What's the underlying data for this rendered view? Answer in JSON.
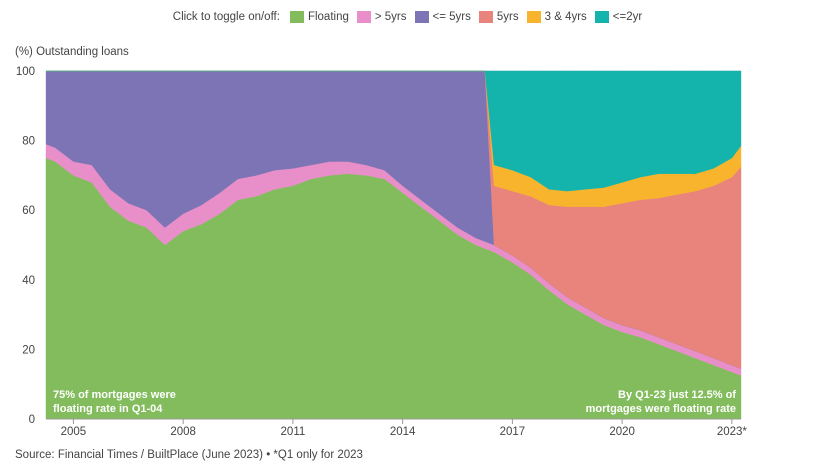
{
  "legend": {
    "prompt": "Click to toggle on/off:",
    "items": [
      {
        "label": "Floating",
        "color": "#82bc5c"
      },
      {
        "label": "> 5yrs",
        "color": "#e88ec8"
      },
      {
        "label": "<= 5yrs",
        "color": "#7c74b4"
      },
      {
        "label": "5yrs",
        "color": "#e8847c"
      },
      {
        "label": "3 & 4yrs",
        "color": "#f8b42c"
      },
      {
        "label": "<=2yr",
        "color": "#14b4ac"
      }
    ]
  },
  "ylabel": "(%) Outstanding loans",
  "source": "Source: Financial Times / BuiltPlace (June 2023) • *Q1 only for 2023",
  "annotations": {
    "left_line1": "75% of mortgages were",
    "left_line2": "floating rate in Q1-04",
    "right_line1": "By Q1-23 just 12.5% of",
    "right_line2": "mortgages were floating rate"
  },
  "chart_data": {
    "type": "area",
    "stacked": true,
    "ylabel": "(%) Outstanding loans",
    "ylim": [
      0,
      100
    ],
    "yticks": [
      0,
      20,
      40,
      60,
      80,
      100
    ],
    "xlim": [
      2004.25,
      2023.25
    ],
    "xticks": [
      2005,
      2008,
      2011,
      2014,
      2017,
      2020,
      2023
    ],
    "xtick_labels": [
      "2005",
      "2008",
      "2011",
      "2014",
      "2017",
      "2020",
      "2023*"
    ],
    "grid": "horizontal",
    "legend_position": "top",
    "x": [
      2004.25,
      2004.5,
      2005,
      2005.5,
      2006,
      2006.5,
      2007,
      2007.5,
      2008,
      2008.5,
      2009,
      2009.5,
      2010,
      2010.5,
      2011,
      2011.5,
      2012,
      2012.5,
      2013,
      2013.5,
      2014,
      2014.5,
      2015,
      2015.5,
      2016,
      2016.25,
      2016.5,
      2017,
      2017.5,
      2018,
      2018.5,
      2019,
      2019.5,
      2020,
      2020.5,
      2021,
      2021.5,
      2022,
      2022.5,
      2023,
      2023.25
    ],
    "series": [
      {
        "name": "Floating",
        "color": "#82bc5c",
        "values": [
          75,
          74,
          70,
          68,
          61,
          57,
          55,
          50,
          54,
          56,
          59,
          63,
          64,
          66,
          67,
          69,
          70,
          70.5,
          70,
          69,
          65,
          61,
          57,
          53,
          50,
          49,
          48,
          45,
          41.5,
          37,
          33,
          30,
          27,
          25,
          23.5,
          21.5,
          19.5,
          17.5,
          15.5,
          13.5,
          12.5
        ]
      },
      {
        "name": "> 5yrs",
        "color": "#e88ec8",
        "values": [
          4,
          4,
          4,
          5,
          5,
          5,
          5,
          5,
          5,
          5.5,
          6,
          6,
          6,
          5.5,
          5,
          4,
          4,
          3.5,
          3,
          2.5,
          2,
          2,
          2,
          2,
          2,
          2,
          2,
          2,
          2,
          2,
          2,
          2,
          2,
          2,
          2,
          2,
          2,
          2,
          2,
          2,
          2
        ]
      },
      {
        "name": "<= 5yrs",
        "color": "#7c74b4",
        "values": [
          21,
          22,
          26,
          27,
          34,
          38,
          40,
          45,
          41,
          38.5,
          35,
          31,
          30,
          28.5,
          28,
          27,
          26,
          26,
          27,
          28.5,
          33,
          37,
          41,
          45,
          48,
          49,
          0,
          0,
          0,
          0,
          0,
          0,
          0,
          0,
          0,
          0,
          0,
          0,
          0,
          0,
          0
        ]
      },
      {
        "name": "5yrs",
        "color": "#e8847c",
        "values": [
          0,
          0,
          0,
          0,
          0,
          0,
          0,
          0,
          0,
          0,
          0,
          0,
          0,
          0,
          0,
          0,
          0,
          0,
          0,
          0,
          0,
          0,
          0,
          0,
          0,
          0,
          17,
          18.5,
          20.5,
          22.5,
          26,
          29,
          32,
          35,
          37.5,
          40,
          43,
          46,
          49.5,
          54,
          58
        ]
      },
      {
        "name": "3 & 4yrs",
        "color": "#f8b42c",
        "values": [
          0,
          0,
          0,
          0,
          0,
          0,
          0,
          0,
          0,
          0,
          0,
          0,
          0,
          0,
          0,
          0,
          0,
          0,
          0,
          0,
          0,
          0,
          0,
          0,
          0,
          0,
          6,
          6,
          5.5,
          4.5,
          4.5,
          5,
          5.5,
          6,
          6.5,
          7,
          6,
          5,
          5,
          5.5,
          6
        ]
      },
      {
        "name": "<=2yr",
        "color": "#14b4ac",
        "values": [
          0,
          0,
          0,
          0,
          0,
          0,
          0,
          0,
          0,
          0,
          0,
          0,
          0,
          0,
          0,
          0,
          0,
          0,
          0,
          0,
          0,
          0,
          0,
          0,
          0,
          0,
          27,
          28.5,
          30.5,
          34,
          34.5,
          34,
          33.5,
          32,
          30.5,
          29.5,
          29.5,
          29.5,
          28,
          25,
          21.5
        ]
      }
    ]
  }
}
